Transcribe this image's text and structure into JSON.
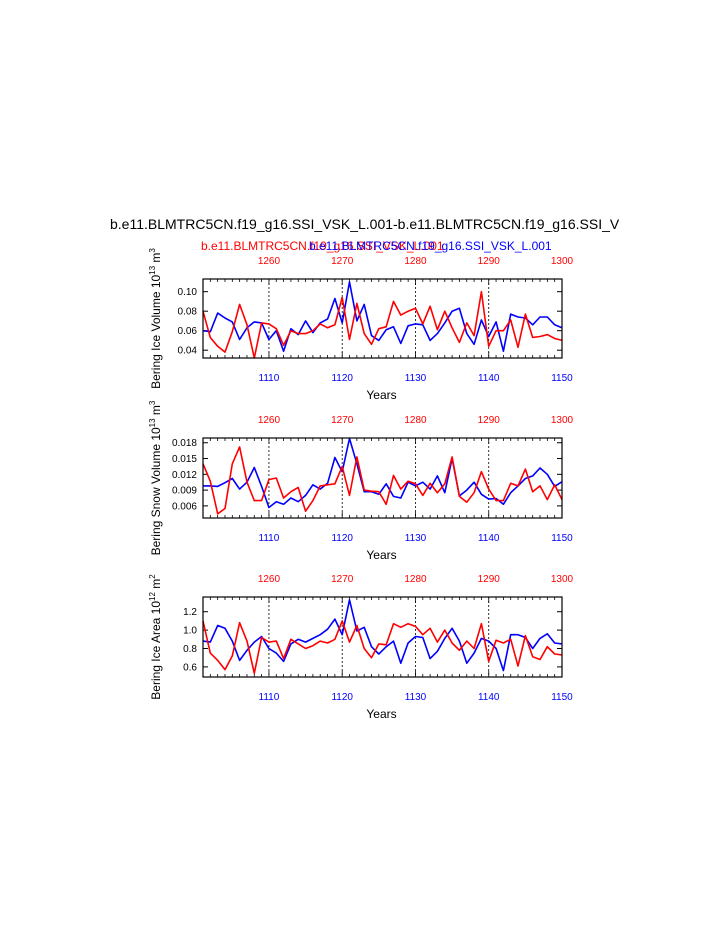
{
  "title": "b.e11.BLMTRC5CN.f19_g16.SSI_VSK_L.001-b.e11.BLMTRC5CN.f19_g16.SSI_V",
  "subtitle_red": "b.e11.BLMTRC5CN.f19_g16.SSI_VSK_L.001",
  "subtitle_blue": "b.e11.BLMTRC5CN.f19_g16.SSI_VSK_L.001",
  "colors": {
    "red": "#ff0000",
    "blue": "#0000ff",
    "black": "#000000"
  },
  "chart_data": [
    {
      "type": "line",
      "ylabel_main": "Bering Ice Volume 10",
      "ylabel_exp": "13",
      "ylabel_unit": " m",
      "ylabel_unit_exp": "3",
      "xlabel": "Years",
      "xlim_bottom": [
        1101,
        1150
      ],
      "xlim_top": [
        1251,
        1300
      ],
      "xticks_bottom": [
        1110,
        1120,
        1130,
        1140,
        1150
      ],
      "xticks_top": [
        1260,
        1270,
        1280,
        1290,
        1300
      ],
      "ylim": [
        0.032,
        0.113
      ],
      "yticks": [
        0.04,
        0.06,
        0.08,
        0.1
      ],
      "ytick_labels": [
        "0.04",
        "0.06",
        "0.08",
        "0.10"
      ],
      "grid_x": [
        1110,
        1120,
        1130,
        1140
      ],
      "series": [
        {
          "color": "blue",
          "values": [
            0.06,
            0.059,
            0.078,
            0.073,
            0.069,
            0.051,
            0.063,
            0.069,
            0.068,
            0.051,
            0.06,
            0.039,
            0.062,
            0.056,
            0.07,
            0.058,
            0.068,
            0.072,
            0.093,
            0.068,
            0.11,
            0.07,
            0.087,
            0.055,
            0.05,
            0.061,
            0.064,
            0.047,
            0.065,
            0.067,
            0.066,
            0.05,
            0.057,
            0.068,
            0.08,
            0.083,
            0.057,
            0.046,
            0.071,
            0.054,
            0.069,
            0.039,
            0.077,
            0.074,
            0.073,
            0.066,
            0.074,
            0.074,
            0.066,
            0.063
          ]
        },
        {
          "color": "red",
          "values": [
            0.08,
            0.053,
            0.044,
            0.038,
            0.059,
            0.087,
            0.066,
            0.032,
            0.068,
            0.067,
            0.062,
            0.045,
            0.06,
            0.057,
            0.057,
            0.06,
            0.067,
            0.063,
            0.066,
            0.094,
            0.051,
            0.088,
            0.057,
            0.046,
            0.062,
            0.064,
            0.09,
            0.076,
            0.08,
            0.083,
            0.067,
            0.085,
            0.061,
            0.08,
            0.063,
            0.048,
            0.068,
            0.055,
            0.1,
            0.044,
            0.06,
            0.06,
            0.071,
            0.043,
            0.077,
            0.053,
            0.054,
            0.056,
            0.052,
            0.05
          ]
        }
      ]
    },
    {
      "type": "line",
      "ylabel_main": "Bering Snow Volume 10",
      "ylabel_exp": "13",
      "ylabel_unit": " m",
      "ylabel_unit_exp": "3",
      "xlabel": "Years",
      "xlim_bottom": [
        1101,
        1150
      ],
      "xlim_top": [
        1251,
        1300
      ],
      "xticks_bottom": [
        1110,
        1120,
        1130,
        1140,
        1150
      ],
      "xticks_top": [
        1260,
        1270,
        1280,
        1290,
        1300
      ],
      "ylim": [
        0.0037,
        0.0189
      ],
      "yticks": [
        0.006,
        0.009,
        0.012,
        0.015,
        0.018
      ],
      "ytick_labels": [
        "0.006",
        "0.009",
        "0.012",
        "0.015",
        "0.018"
      ],
      "grid_x": [
        1110,
        1120,
        1130,
        1140
      ],
      "series": [
        {
          "color": "blue",
          "values": [
            0.0098,
            0.0098,
            0.0097,
            0.0104,
            0.0112,
            0.0092,
            0.0105,
            0.0133,
            0.0097,
            0.0057,
            0.0068,
            0.0063,
            0.0075,
            0.0068,
            0.008,
            0.01,
            0.0092,
            0.0103,
            0.0152,
            0.0125,
            0.0188,
            0.014,
            0.0087,
            0.0087,
            0.0082,
            0.0102,
            0.0078,
            0.0075,
            0.0105,
            0.0098,
            0.0105,
            0.0092,
            0.0117,
            0.0085,
            0.015,
            0.0079,
            0.009,
            0.0105,
            0.0082,
            0.0073,
            0.0074,
            0.0063,
            0.0085,
            0.0098,
            0.0112,
            0.0117,
            0.0132,
            0.012,
            0.0097,
            0.0106
          ]
        },
        {
          "color": "red",
          "values": [
            0.014,
            0.0107,
            0.0045,
            0.0055,
            0.014,
            0.0172,
            0.0105,
            0.007,
            0.007,
            0.011,
            0.0113,
            0.0075,
            0.0087,
            0.0095,
            0.005,
            0.007,
            0.0098,
            0.01,
            0.0102,
            0.0135,
            0.008,
            0.0153,
            0.009,
            0.0088,
            0.0087,
            0.0063,
            0.0118,
            0.0092,
            0.0107,
            0.0102,
            0.008,
            0.0103,
            0.0085,
            0.0102,
            0.0153,
            0.0078,
            0.0067,
            0.0085,
            0.0125,
            0.0092,
            0.007,
            0.007,
            0.0103,
            0.0098,
            0.013,
            0.0087,
            0.0098,
            0.0072,
            0.01,
            0.0072
          ]
        }
      ]
    },
    {
      "type": "line",
      "ylabel_main": "Bering Ice Area 10",
      "ylabel_exp": "12",
      "ylabel_unit": " m",
      "ylabel_unit_exp": "2",
      "xlabel": "Years",
      "xlim_bottom": [
        1101,
        1150
      ],
      "xlim_top": [
        1251,
        1300
      ],
      "xticks_bottom": [
        1110,
        1120,
        1130,
        1140,
        1150
      ],
      "xticks_top": [
        1260,
        1270,
        1280,
        1290,
        1300
      ],
      "ylim": [
        0.49,
        1.36
      ],
      "yticks": [
        0.6,
        0.8,
        1.0,
        1.2
      ],
      "ytick_labels": [
        "0.6",
        "0.8",
        "1.0",
        "1.2"
      ],
      "grid_x": [
        1110,
        1120,
        1130,
        1140
      ],
      "series": [
        {
          "color": "blue",
          "values": [
            0.88,
            0.87,
            1.05,
            1.02,
            0.88,
            0.67,
            0.78,
            0.87,
            0.93,
            0.8,
            0.75,
            0.66,
            0.85,
            0.9,
            0.87,
            0.91,
            0.95,
            1.01,
            1.12,
            0.95,
            1.33,
            0.99,
            1.03,
            0.82,
            0.74,
            0.82,
            0.88,
            0.64,
            0.86,
            0.93,
            0.92,
            0.69,
            0.77,
            0.91,
            1.02,
            0.88,
            0.64,
            0.75,
            0.91,
            0.88,
            0.8,
            0.56,
            0.95,
            0.95,
            0.92,
            0.8,
            0.91,
            0.96,
            0.86,
            0.85
          ]
        },
        {
          "color": "red",
          "values": [
            1.1,
            0.75,
            0.67,
            0.57,
            0.72,
            1.08,
            0.88,
            0.53,
            0.92,
            0.87,
            0.88,
            0.69,
            0.9,
            0.85,
            0.8,
            0.83,
            0.88,
            0.86,
            0.9,
            1.1,
            0.87,
            1.05,
            0.8,
            0.7,
            0.85,
            0.84,
            1.07,
            1.03,
            1.07,
            1.04,
            0.95,
            1.02,
            0.87,
            1.0,
            0.86,
            0.78,
            0.88,
            0.8,
            1.07,
            0.66,
            0.89,
            0.86,
            0.9,
            0.61,
            0.94,
            0.71,
            0.68,
            0.82,
            0.74,
            0.73
          ]
        }
      ]
    }
  ]
}
